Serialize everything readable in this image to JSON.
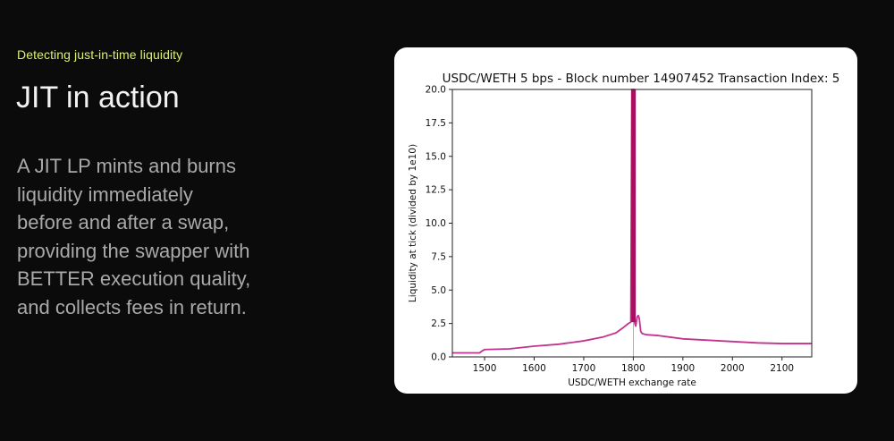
{
  "slide": {
    "eyebrow": "Detecting just-in-time liquidity",
    "title": "JIT in action",
    "body_lines": [
      "A JIT LP mints and burns",
      "liquidity immediately",
      "before and after a swap,",
      "providing the swapper with",
      "BETTER execution quality,",
      "and collects fees in return."
    ]
  },
  "colors": {
    "background": "#0b0b0b",
    "eyebrow": "#d8f36b",
    "series": "#c2338f",
    "spike": "#a8105f"
  },
  "chart_data": {
    "type": "line",
    "title": "USDC/WETH 5 bps - Block number 14907452 Transaction Index: 5",
    "xlabel": "USDC/WETH exchange rate",
    "ylabel": "Liquidity at tick (divided by 1e10)",
    "xlim": [
      1435,
      2160
    ],
    "ylim": [
      0,
      20
    ],
    "xticks": [
      1500,
      1600,
      1700,
      1800,
      1900,
      2000,
      2100
    ],
    "yticks": [
      0.0,
      2.5,
      5.0,
      7.5,
      10.0,
      12.5,
      15.0,
      17.5,
      20.0
    ],
    "grid": false,
    "vertical_marker_x": 1800,
    "series": [
      {
        "x": [
          1435,
          1490,
          1495,
          1500,
          1550,
          1600,
          1650,
          1700,
          1740,
          1765,
          1780,
          1790,
          1795,
          1797,
          1798,
          1799,
          1800,
          1801,
          1802,
          1803,
          1805,
          1808,
          1810,
          1812,
          1815,
          1818,
          1822,
          1830,
          1850,
          1880,
          1900,
          1950,
          2000,
          2050,
          2100,
          2160
        ],
        "y": [
          0.3,
          0.3,
          0.45,
          0.55,
          0.6,
          0.8,
          0.95,
          1.2,
          1.5,
          1.8,
          2.2,
          2.5,
          2.6,
          20,
          20,
          20,
          20,
          20,
          20,
          2.5,
          2.3,
          3.0,
          3.1,
          2.9,
          1.9,
          1.75,
          1.7,
          1.65,
          1.6,
          1.45,
          1.35,
          1.25,
          1.15,
          1.05,
          1.0,
          1.0
        ]
      }
    ]
  }
}
